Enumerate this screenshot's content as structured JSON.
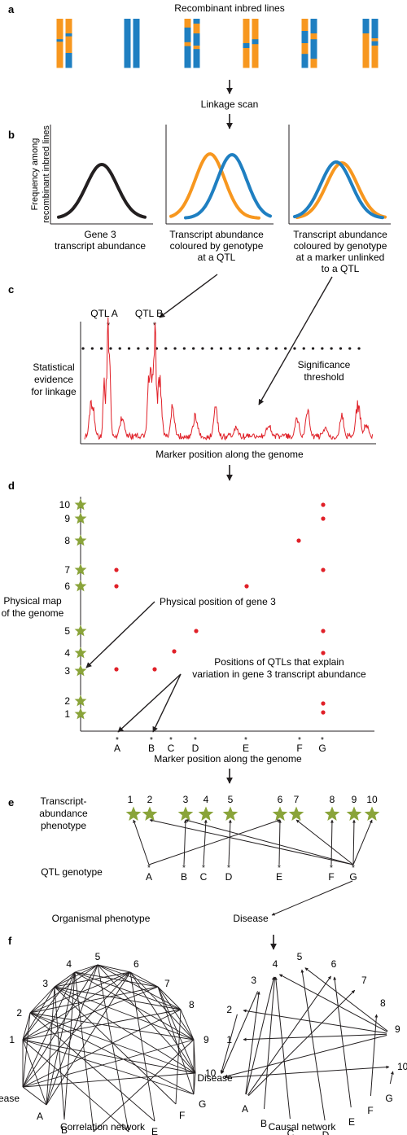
{
  "colors": {
    "blue": "#1f7fc1",
    "orange": "#f7971f",
    "red": "#e02028",
    "green": "#8aa43a",
    "ink": "#231f20",
    "curve_black": "#231f20"
  },
  "panels": {
    "a": "a",
    "b": "b",
    "c": "c",
    "d": "d",
    "e": "e",
    "f": "f"
  },
  "a": {
    "title": "Recombinant inbred lines"
  },
  "b": {
    "linkage_scan": "Linkage scan",
    "y_label_1": "Frequency among",
    "y_label_2": "recombinant inbred lines",
    "plot1_1": "Gene 3",
    "plot1_2": "transcript abundance",
    "plot2_1": "Transcript abundance",
    "plot2_2": "coloured by genotype",
    "plot2_3": "at a QTL",
    "plot3_1": "Transcript abundance",
    "plot3_2": "coloured by genotype",
    "plot3_3": "at a marker unlinked",
    "plot3_4": "to a QTL"
  },
  "c": {
    "qtl_a": "QTL A",
    "qtl_b": "QTL B",
    "star": "*",
    "y_1": "Statistical",
    "y_2": "evidence",
    "y_3": "for linkage",
    "sig_1": "Significance",
    "sig_2": "threshold",
    "x_label": "Marker position along the genome"
  },
  "d": {
    "y_1": "Physical map",
    "y_2": "of the genome",
    "x_label": "Marker position along the genome",
    "gene_numbers": [
      "1",
      "2",
      "3",
      "4",
      "5",
      "6",
      "7",
      "8",
      "9",
      "10"
    ],
    "markers": [
      "A",
      "B",
      "C",
      "D",
      "E",
      "F",
      "G"
    ],
    "phys_label": "Physical position of gene 3",
    "qtl_1": "Positions of QTLs that explain",
    "qtl_2": "variation in gene 3 transcript abundance"
  },
  "e": {
    "pheno_1": "Transcript-",
    "pheno_2": "abundance",
    "pheno_3": "phenotype",
    "qtl_genotype": "QTL genotype",
    "organismal": "Organismal phenotype",
    "disease": "Disease",
    "numbers": [
      "1",
      "2",
      "3",
      "4",
      "5",
      "6",
      "7",
      "8",
      "9",
      "10"
    ],
    "markers": [
      "A",
      "B",
      "C",
      "D",
      "E",
      "F",
      "G"
    ]
  },
  "f": {
    "nodes": [
      "1",
      "2",
      "3",
      "4",
      "5",
      "6",
      "7",
      "8",
      "9",
      "10",
      "Disease",
      "A",
      "B",
      "C",
      "D",
      "E",
      "F",
      "G"
    ],
    "correlation": "Correlation network",
    "causal": "Causal network"
  }
}
